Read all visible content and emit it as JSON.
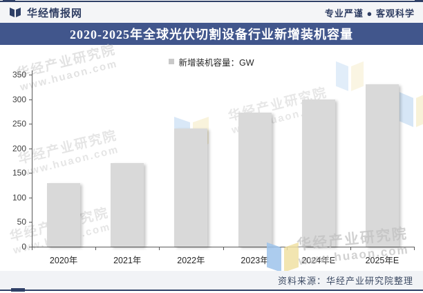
{
  "header": {
    "brand": "华经情报网",
    "slogan": "专业严谨 ● 客观科学",
    "logo_icon": "open-book"
  },
  "title": "2020-2025年全球光伏切割设备行业新增装机容量",
  "legend": {
    "label": "新增装机容量：GW"
  },
  "chart_data": {
    "type": "bar",
    "categories": [
      "2020年",
      "2021年",
      "2022年",
      "2023年",
      "2024年E",
      "2025年E"
    ],
    "values": [
      130,
      170,
      240,
      273,
      299,
      330
    ],
    "title": "2020-2025年全球光伏切割设备行业新增装机容量",
    "xlabel": "",
    "ylabel": "新增装机容量：GW",
    "ylim": [
      0,
      350
    ],
    "ytick_step": 50,
    "grid": false,
    "legend_position": "top-center",
    "bar_color": "#d9d9d9"
  },
  "watermark": {
    "line1": "华经产业研究院",
    "line2": "www.huaon.com"
  },
  "footer": {
    "source": "资料来源：华经产业研究院整理"
  },
  "colors": {
    "accent_navy": "#2e3f66",
    "title_band": "#41568c",
    "bar": "#d9d9d9",
    "legend_marker": "#c9c9c9",
    "axis": "#595959",
    "header_bg": "#f4f5f7",
    "footer_bg": "#f1f3f6"
  }
}
